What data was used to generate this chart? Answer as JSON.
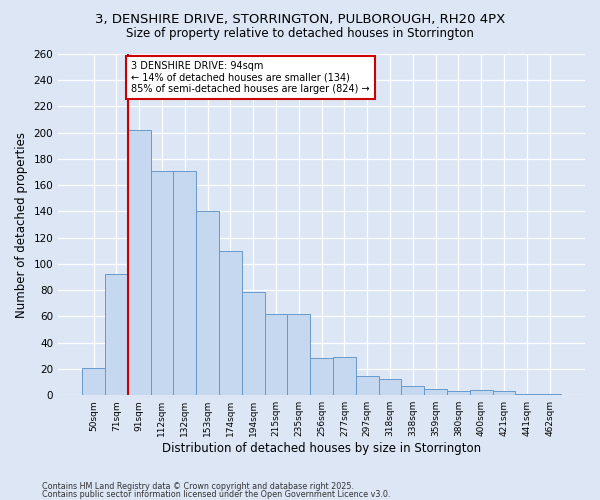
{
  "title_line1": "3, DENSHIRE DRIVE, STORRINGTON, PULBOROUGH, RH20 4PX",
  "title_line2": "Size of property relative to detached houses in Storrington",
  "xlabel": "Distribution of detached houses by size in Storrington",
  "ylabel": "Number of detached properties",
  "categories": [
    "50sqm",
    "71sqm",
    "91sqm",
    "112sqm",
    "132sqm",
    "153sqm",
    "174sqm",
    "194sqm",
    "215sqm",
    "235sqm",
    "256sqm",
    "277sqm",
    "297sqm",
    "318sqm",
    "338sqm",
    "359sqm",
    "380sqm",
    "400sqm",
    "421sqm",
    "441sqm",
    "462sqm"
  ],
  "values": [
    21,
    92,
    202,
    171,
    171,
    140,
    110,
    79,
    62,
    62,
    28,
    29,
    15,
    12,
    7,
    5,
    3,
    4,
    3,
    1,
    1
  ],
  "bar_color": "#c5d8f0",
  "bar_edge_color": "#6699cc",
  "vline_x_index": 2,
  "vline_color": "#cc0000",
  "annotation_text": "3 DENSHIRE DRIVE: 94sqm\n← 14% of detached houses are smaller (134)\n85% of semi-detached houses are larger (824) →",
  "annotation_box_color": "#ffffff",
  "annotation_box_edge_color": "#cc0000",
  "background_color": "#dce6f5",
  "plot_bg_color": "#dce6f5",
  "ylim": [
    0,
    260
  ],
  "yticks": [
    0,
    20,
    40,
    60,
    80,
    100,
    120,
    140,
    160,
    180,
    200,
    220,
    240,
    260
  ],
  "footer_line1": "Contains HM Land Registry data © Crown copyright and database right 2025.",
  "footer_line2": "Contains public sector information licensed under the Open Government Licence v3.0."
}
